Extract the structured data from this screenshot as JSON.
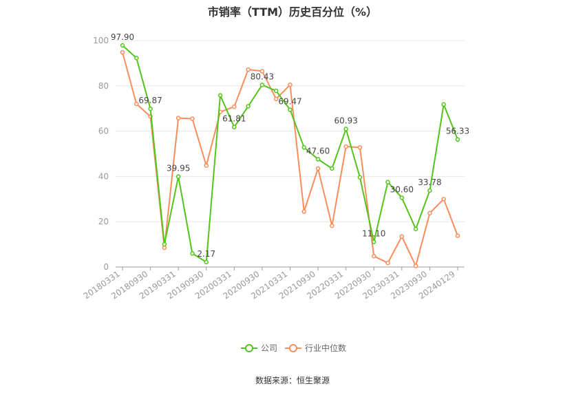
{
  "title": "市销率（TTM）历史百分位（%）",
  "source": "数据来源：恒生聚源",
  "chart_data": {
    "type": "line",
    "title": "市销率（TTM）历史百分位（%）",
    "xlabel": "",
    "ylabel": "",
    "ylim": [
      0,
      100
    ],
    "yticks": [
      0,
      20,
      40,
      60,
      80,
      100
    ],
    "x_tick_labels": [
      "20180331",
      "20180930",
      "20190331",
      "20190930",
      "20200331",
      "20200930",
      "20210331",
      "20210930",
      "20220331",
      "20220930",
      "20230331",
      "20230930",
      "20240129"
    ],
    "grid": true,
    "legend_position": "bottom",
    "colors": {
      "company": "#52c41a",
      "industry": "#fa8c5a"
    },
    "series": [
      {
        "name": "公司",
        "values": [
          97.9,
          92.3,
          69.87,
          10.0,
          39.95,
          6.0,
          2.17,
          75.8,
          61.81,
          71.0,
          80.43,
          77.8,
          69.47,
          52.8,
          47.6,
          43.5,
          60.93,
          39.6,
          11.1,
          37.5,
          30.6,
          16.8,
          33.78,
          71.8,
          56.33
        ],
        "labels": [
          "97.90",
          "",
          "69.87",
          "",
          "39.95",
          "",
          "2.17",
          "",
          "61.81",
          "",
          "80.43",
          "",
          "69.47",
          "",
          "47.60",
          "",
          "60.93",
          "",
          "11.10",
          "",
          "30.60",
          "",
          "33.78",
          "",
          "56.33"
        ]
      },
      {
        "name": "行业中位数",
        "values": [
          94.8,
          72.0,
          66.5,
          8.5,
          65.8,
          65.5,
          44.8,
          68.5,
          70.8,
          87.2,
          86.5,
          74.2,
          80.5,
          24.5,
          43.5,
          18.2,
          53.2,
          52.8,
          4.8,
          1.8,
          13.5,
          0.5,
          23.8,
          30.0,
          13.8
        ]
      }
    ]
  }
}
